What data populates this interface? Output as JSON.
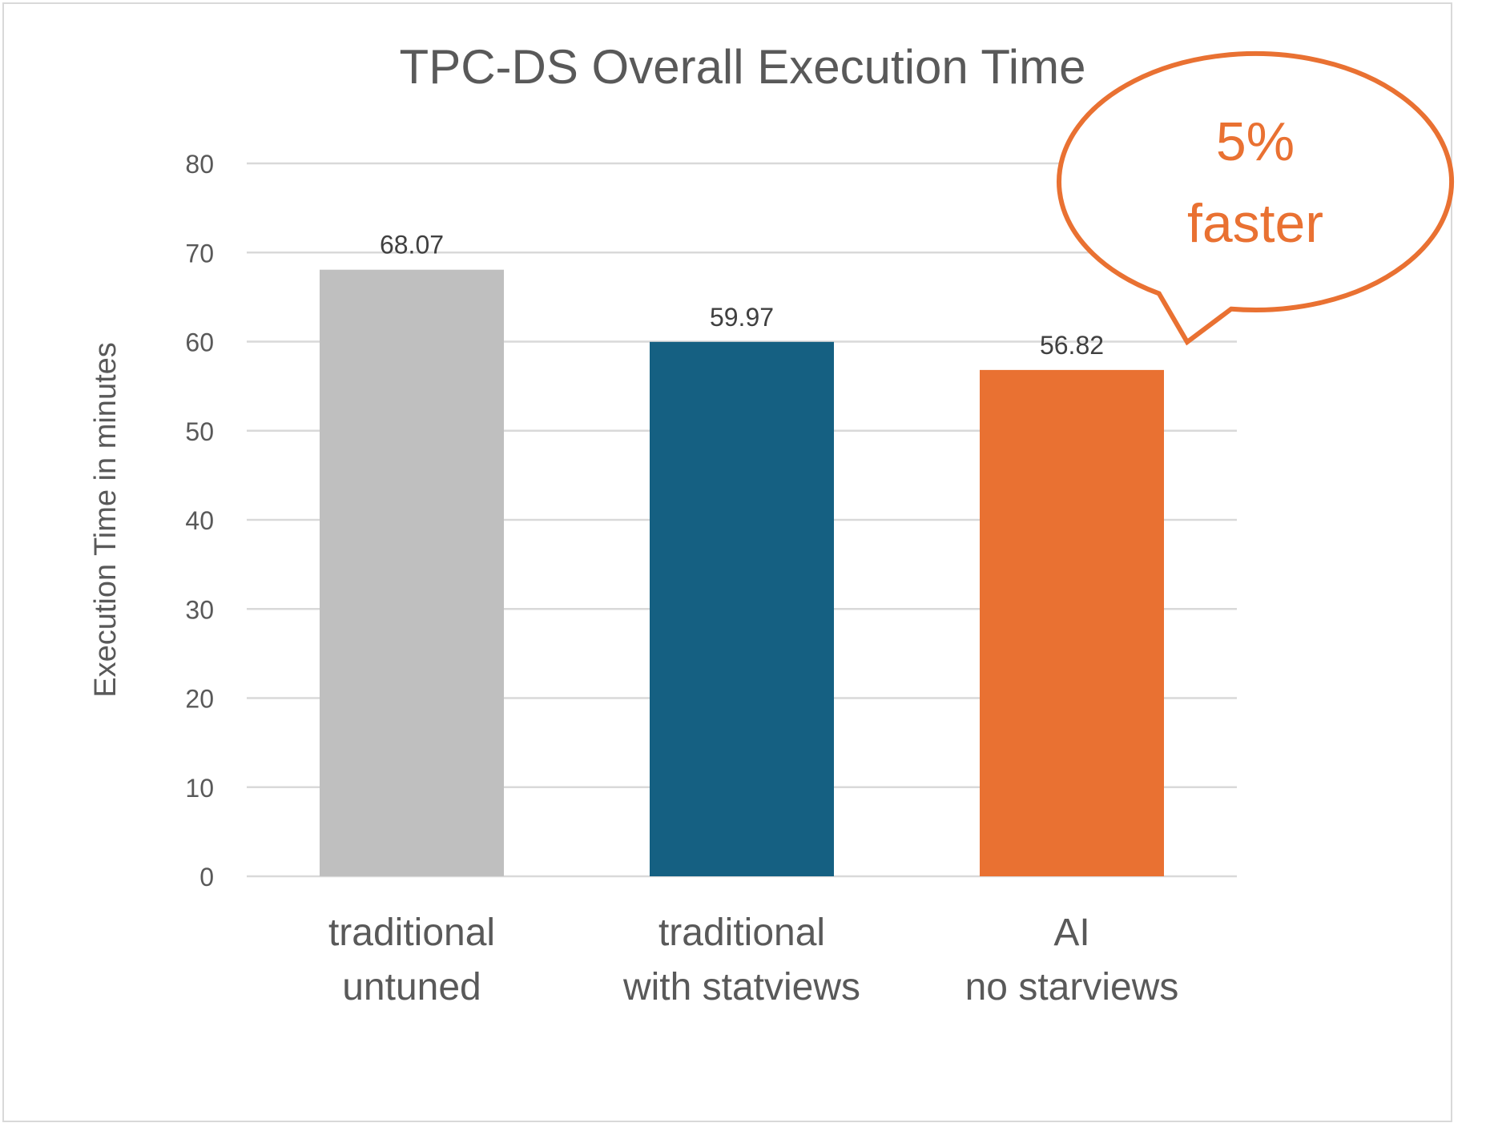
{
  "chart_data": {
    "type": "bar",
    "title": "TPC-DS Overall Execution Time",
    "xlabel": "",
    "ylabel": "Execution Time in minutes",
    "ylim": [
      0,
      80
    ],
    "yticks": [
      0,
      10,
      20,
      30,
      40,
      50,
      60,
      70,
      80
    ],
    "grid": true,
    "categories": [
      [
        "traditional",
        "untuned"
      ],
      [
        "traditional",
        "with statviews"
      ],
      [
        "AI",
        "no starviews"
      ]
    ],
    "values": [
      68.07,
      59.97,
      56.82
    ],
    "data_labels": [
      "68.07",
      "59.97",
      "56.82"
    ],
    "colors": [
      "#bfbfbf",
      "#156082",
      "#e97132"
    ],
    "annotation": {
      "lines": [
        "5%",
        "faster"
      ],
      "color": "#e97132",
      "points_to": "AI no starviews"
    }
  }
}
